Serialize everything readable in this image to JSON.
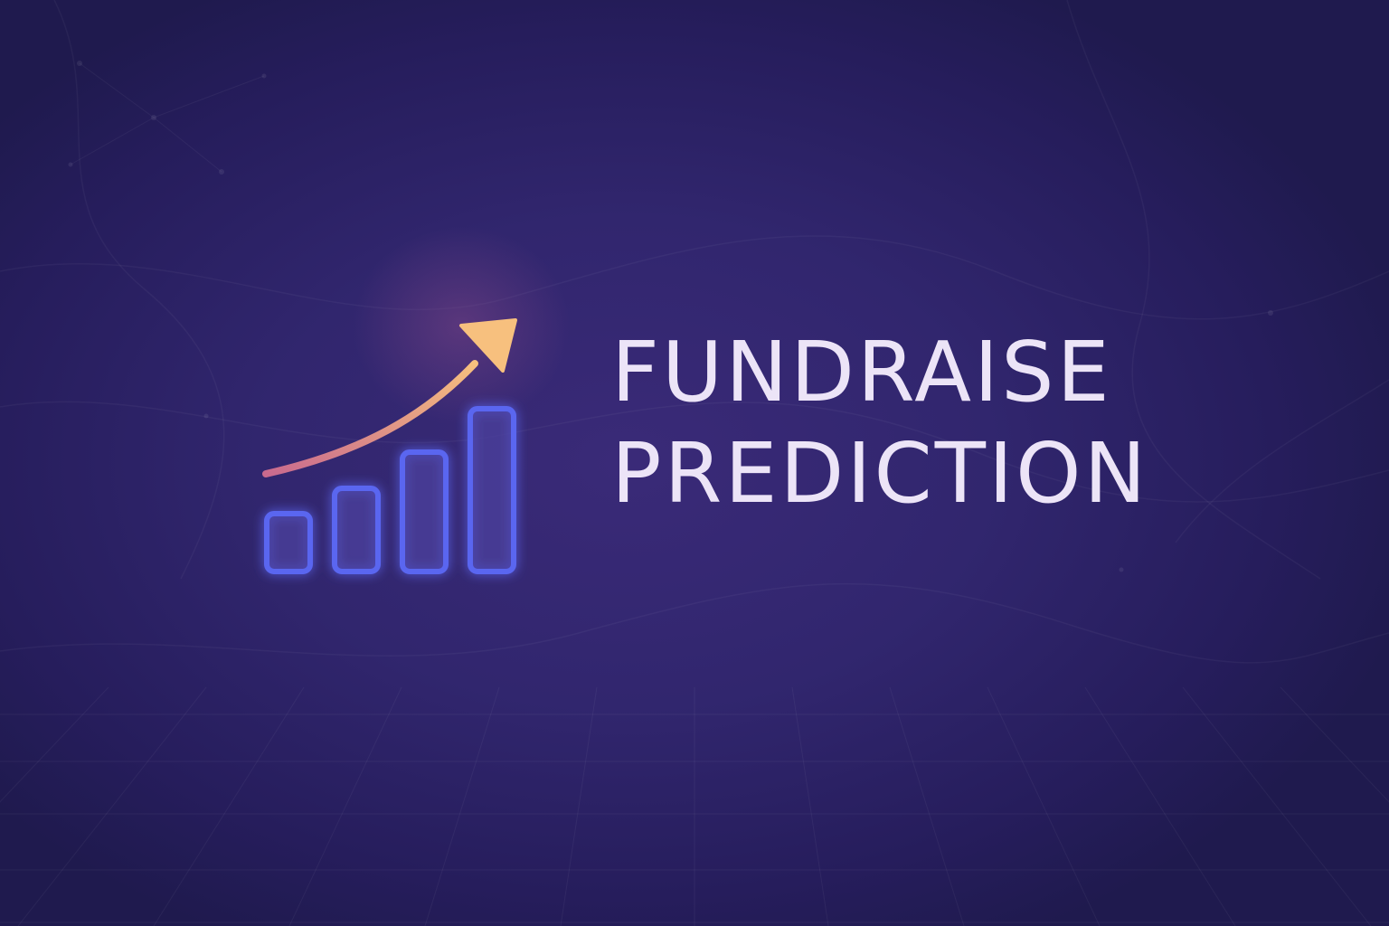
{
  "brand": {
    "title_line1": "FUNDRAISE",
    "title_line2": "PREDICTION",
    "icon": "rising-bar-chart-with-arrow-icon"
  },
  "colors": {
    "background": "#2d2467",
    "background_dark": "#1f1a4e",
    "title_text": "#ece4f7",
    "bars_stroke": "#5a66f0",
    "arrow_start": "#c96a8e",
    "arrow_end": "#f7c07e"
  }
}
